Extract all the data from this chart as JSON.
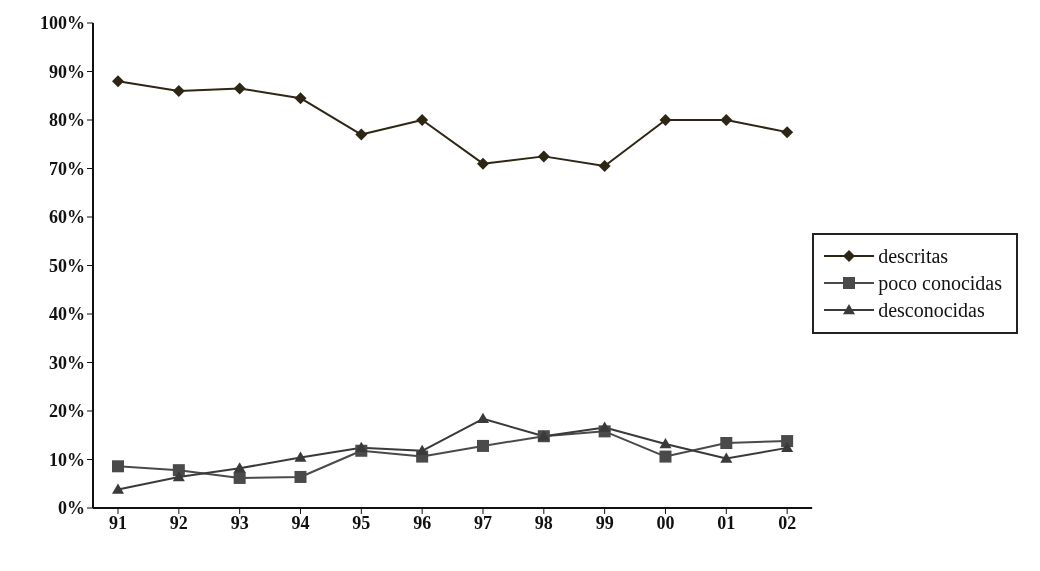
{
  "chart_data": {
    "type": "line",
    "categories": [
      "91",
      "92",
      "93",
      "94",
      "95",
      "96",
      "97",
      "98",
      "99",
      "00",
      "01",
      "02"
    ],
    "series": [
      {
        "name": "descritas",
        "color": "#2e2614",
        "marker": "diamond",
        "values": [
          88,
          86,
          86.5,
          84.5,
          77,
          80,
          71,
          72.5,
          70.5,
          80,
          80,
          77.5
        ]
      },
      {
        "name": "poco conocidas",
        "color": "#4a4a4a",
        "marker": "square",
        "values": [
          8.6,
          7.8,
          6.2,
          6.4,
          11.8,
          10.6,
          12.8,
          14.8,
          15.8,
          10.6,
          13.4,
          13.8
        ]
      },
      {
        "name": "desconocidas",
        "color": "#3a3a3a",
        "marker": "triangle",
        "values": [
          3.8,
          6.4,
          8.2,
          10.4,
          12.4,
          11.8,
          18.4,
          14.8,
          16.6,
          13.2,
          10.2,
          12.4
        ]
      }
    ],
    "ylim": [
      0,
      100
    ],
    "yticks": [
      {
        "value": 0,
        "label": "0%"
      },
      {
        "value": 10,
        "label": "10%"
      },
      {
        "value": 20,
        "label": "20%"
      },
      {
        "value": 30,
        "label": "30%"
      },
      {
        "value": 40,
        "label": "40%"
      },
      {
        "value": 50,
        "label": "50%"
      },
      {
        "value": 60,
        "label": "60%"
      },
      {
        "value": 70,
        "label": "70%"
      },
      {
        "value": 80,
        "label": "80%"
      },
      {
        "value": 90,
        "label": "90%"
      },
      {
        "value": 100,
        "label": "100%"
      }
    ],
    "grid": false,
    "legend": "right",
    "line_style": "solid"
  }
}
